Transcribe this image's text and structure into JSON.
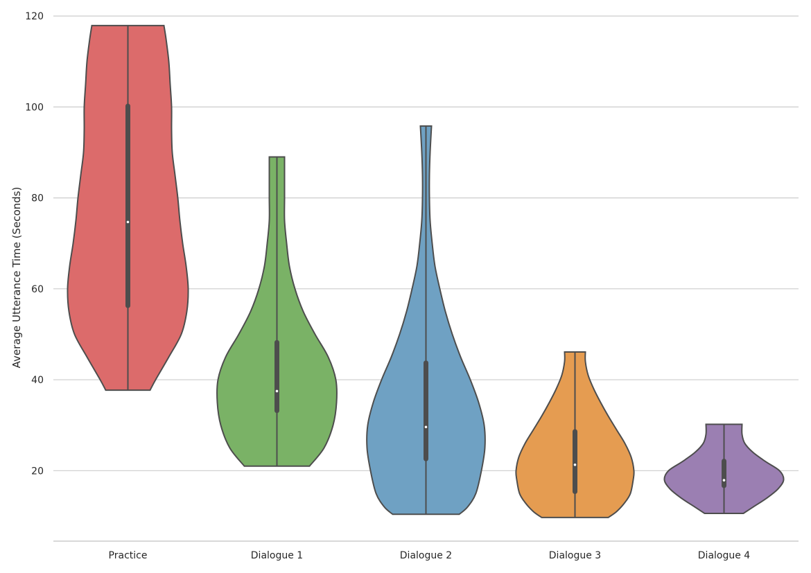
{
  "chart_data": {
    "type": "violin",
    "title": "",
    "xlabel": "",
    "ylabel": "Average Utterance Time (Seconds)",
    "ylim": [
      4.5,
      122
    ],
    "yticks": [
      20,
      40,
      60,
      80,
      100,
      120
    ],
    "grid": true,
    "categories": [
      "Practice",
      "Dialogue 1",
      "Dialogue 2",
      "Dialogue 3",
      "Dialogue 4"
    ],
    "series": [
      {
        "category": "Practice",
        "color": "#dc6b6b",
        "min": 37.7,
        "q1": 56.3,
        "median": 74.7,
        "q3": 100.2,
        "max": 117.9,
        "density": [
          [
            37.7,
            0.32
          ],
          [
            40,
            0.4
          ],
          [
            45,
            0.59
          ],
          [
            50,
            0.77
          ],
          [
            55,
            0.85
          ],
          [
            60,
            0.87
          ],
          [
            65,
            0.84
          ],
          [
            70,
            0.79
          ],
          [
            75,
            0.75
          ],
          [
            80,
            0.72
          ],
          [
            85,
            0.68
          ],
          [
            90,
            0.64
          ],
          [
            95,
            0.63
          ],
          [
            100,
            0.63
          ],
          [
            105,
            0.61
          ],
          [
            110,
            0.59
          ],
          [
            115,
            0.55
          ],
          [
            117.9,
            0.52
          ]
        ]
      },
      {
        "category": "Dialogue 1",
        "color": "#7ab266",
        "min": 21.0,
        "q1": 33.2,
        "median": 37.5,
        "q3": 48.2,
        "max": 89.0,
        "density": [
          [
            21,
            0.47
          ],
          [
            25,
            0.68
          ],
          [
            30,
            0.81
          ],
          [
            35,
            0.86
          ],
          [
            40,
            0.85
          ],
          [
            45,
            0.74
          ],
          [
            50,
            0.55
          ],
          [
            55,
            0.38
          ],
          [
            60,
            0.26
          ],
          [
            65,
            0.18
          ],
          [
            70,
            0.14
          ],
          [
            75,
            0.11
          ],
          [
            80,
            0.11
          ],
          [
            85,
            0.11
          ],
          [
            89,
            0.11
          ]
        ]
      },
      {
        "category": "Dialogue 2",
        "color": "#6fa1c3",
        "min": 10.4,
        "q1": 22.6,
        "median": 29.6,
        "q3": 43.7,
        "max": 95.8,
        "density": [
          [
            10.4,
            0.48
          ],
          [
            12,
            0.6
          ],
          [
            15,
            0.72
          ],
          [
            20,
            0.8
          ],
          [
            25,
            0.85
          ],
          [
            30,
            0.84
          ],
          [
            35,
            0.76
          ],
          [
            40,
            0.64
          ],
          [
            45,
            0.5
          ],
          [
            50,
            0.38
          ],
          [
            55,
            0.28
          ],
          [
            60,
            0.2
          ],
          [
            65,
            0.13
          ],
          [
            70,
            0.09
          ],
          [
            75,
            0.06
          ],
          [
            80,
            0.05
          ],
          [
            85,
            0.05
          ],
          [
            90,
            0.06
          ],
          [
            95.8,
            0.08
          ]
        ]
      },
      {
        "category": "Dialogue 3",
        "color": "#e59c51",
        "min": 9.7,
        "q1": 15.4,
        "median": 21.3,
        "q3": 28.6,
        "max": 46.1,
        "density": [
          [
            9.7,
            0.48
          ],
          [
            11,
            0.6
          ],
          [
            13,
            0.72
          ],
          [
            15,
            0.8
          ],
          [
            18,
            0.84
          ],
          [
            20,
            0.85
          ],
          [
            23,
            0.81
          ],
          [
            26,
            0.72
          ],
          [
            29,
            0.6
          ],
          [
            32,
            0.48
          ],
          [
            35,
            0.37
          ],
          [
            38,
            0.27
          ],
          [
            41,
            0.19
          ],
          [
            44,
            0.15
          ],
          [
            46.1,
            0.15
          ]
        ]
      },
      {
        "category": "Dialogue 4",
        "color": "#9b7fb2",
        "min": 10.6,
        "q1": 16.7,
        "median": 17.9,
        "q3": 22.1,
        "max": 30.2,
        "density": [
          [
            10.6,
            0.28
          ],
          [
            12,
            0.42
          ],
          [
            14,
            0.62
          ],
          [
            16,
            0.78
          ],
          [
            18,
            0.86
          ],
          [
            20,
            0.8
          ],
          [
            22,
            0.6
          ],
          [
            24,
            0.42
          ],
          [
            26,
            0.3
          ],
          [
            28,
            0.26
          ],
          [
            30.2,
            0.26
          ]
        ]
      }
    ]
  }
}
